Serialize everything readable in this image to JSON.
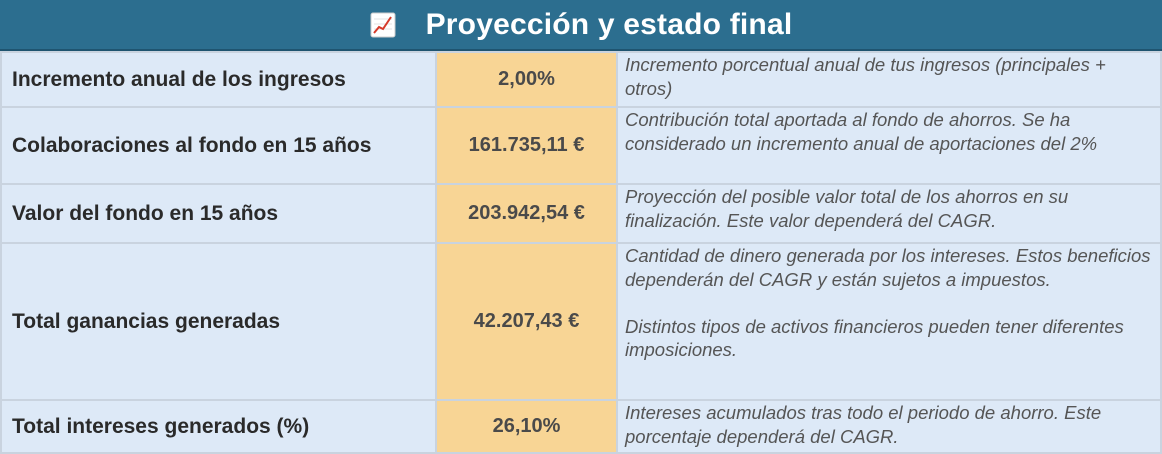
{
  "header": {
    "icon": "chart-increasing-icon",
    "title": "Proyección y estado final"
  },
  "colors": {
    "header_bg": "#2c6e8f",
    "label_bg": "#dde9f7",
    "value_bg": "#f8d595"
  },
  "rows": [
    {
      "label": "Incremento anual de los ingresos",
      "value": "2,00%",
      "description": [
        "Incremento porcentual anual de tus ingresos (principales + otros)"
      ]
    },
    {
      "label": "Colaboraciones al fondo en 15 años",
      "value": "161.735,11 €",
      "description": [
        "Contribución total aportada al fondo de ahorros. Se ha considerado un incremento anual de aportaciones del 2%"
      ]
    },
    {
      "label": "Valor del fondo en 15 años",
      "value": "203.942,54 €",
      "description": [
        "Proyección del posible valor total de los ahorros en su finalización. Este valor dependerá del CAGR."
      ]
    },
    {
      "label": "Total ganancias generadas",
      "value": "42.207,43 €",
      "description": [
        "Cantidad de dinero generada por los intereses. Estos beneficios dependerán del CAGR y están sujetos a impuestos.",
        "Distintos tipos de activos financieros pueden tener diferentes imposiciones."
      ]
    },
    {
      "label": "Total intereses generados (%)",
      "value": "26,10%",
      "description": [
        "Intereses acumulados tras todo el periodo de ahorro. Este porcentaje dependerá del CAGR."
      ]
    }
  ]
}
